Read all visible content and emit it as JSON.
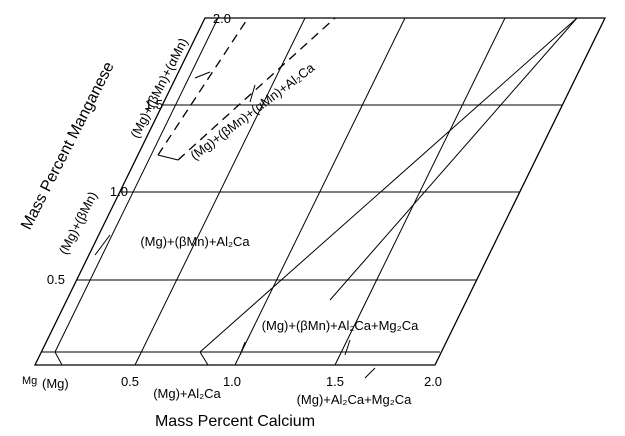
{
  "x_axis": {
    "title": "Mass Percent Calcium",
    "ticks": [
      "0.5",
      "1.0",
      "1.5",
      "2.0"
    ]
  },
  "y_axis": {
    "title": "Mass Percent Manganese",
    "ticks": [
      "0.5",
      "1.0",
      "1.5",
      "2.0"
    ]
  },
  "corner": "Mg",
  "regions": [
    "(Mg)",
    "(Mg)+(βMn)",
    "(Mg)+(βMn)+(αMn)",
    "(Mg)+(βMn)+(αMn)+Al₂Ca",
    "(Mg)+(βMn)+Al₂Ca",
    "(Mg)+(βMn)+Al₂Ca+Mg₂Ca",
    "(Mg)+Al₂Ca",
    "(Mg)+Al₂Ca+Mg₂Ca"
  ]
}
